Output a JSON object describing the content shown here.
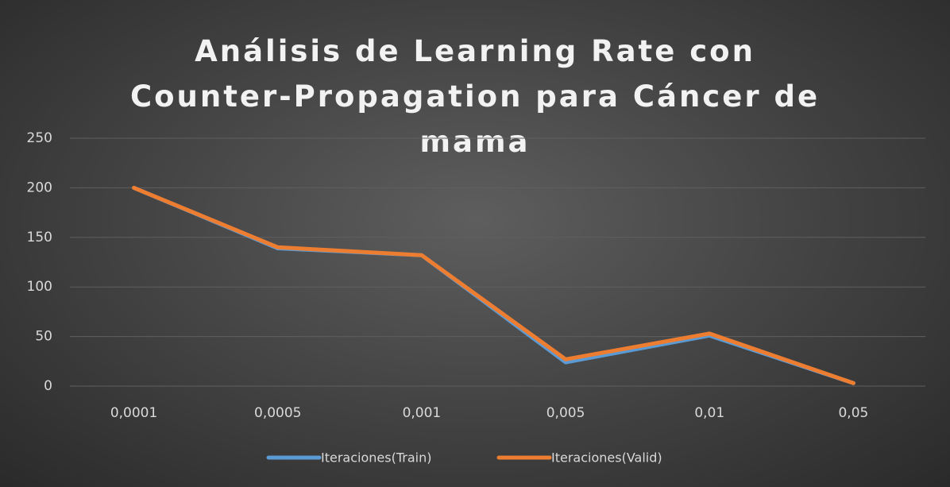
{
  "chart_data": {
    "type": "line",
    "title": "Análisis de Learning Rate con Counter-Propagation para Cáncer de mama",
    "categories": [
      "0,0001",
      "0,0005",
      "0,001",
      "0,005",
      "0,01",
      "0,05"
    ],
    "series": [
      {
        "name": "Iteraciones(Train)",
        "color": "#5b9bd5",
        "values": [
          200,
          139,
          132,
          24,
          51,
          3
        ]
      },
      {
        "name": "Iteraciones(Valid)",
        "color": "#ed7d31",
        "values": [
          200,
          140,
          132,
          27,
          53,
          3
        ]
      }
    ],
    "ylim": [
      0,
      250
    ],
    "yticks": [
      0,
      50,
      100,
      150,
      200,
      250
    ],
    "grid": true,
    "legend": "bottom"
  }
}
